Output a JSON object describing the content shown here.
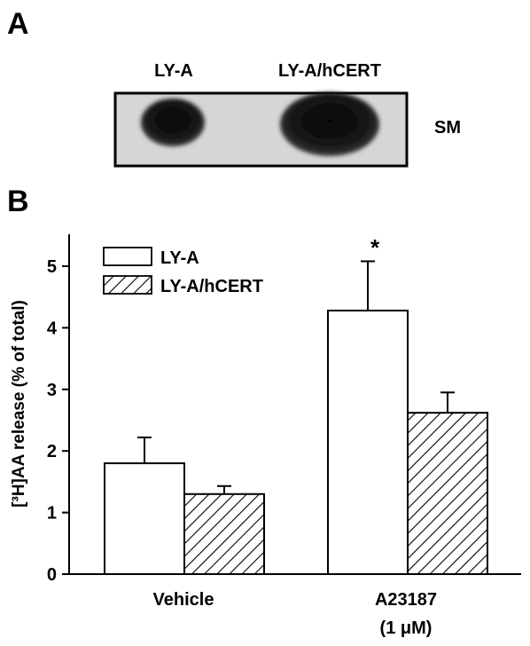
{
  "panel_a": {
    "letter": "A",
    "lane_labels": [
      "LY-A",
      "LY-A/hCERT"
    ],
    "band_label": "SM"
  },
  "panel_b": {
    "letter": "B"
  },
  "chart_data": {
    "type": "bar",
    "categories": [
      "Vehicle",
      "A23187"
    ],
    "category_sublabels": [
      "",
      "(1 μM)"
    ],
    "ylabel": "[³H]AA release (% of total)",
    "xlabel": "",
    "ylim": [
      0,
      5.5
    ],
    "yticks": [
      0,
      1,
      2,
      3,
      4,
      5
    ],
    "legend_position": "top-left",
    "series": [
      {
        "name": "LY-A",
        "fill": "open",
        "values": [
          1.8,
          4.28
        ],
        "errors": [
          0.42,
          0.8
        ]
      },
      {
        "name": "LY-A/hCERT",
        "fill": "hatched",
        "values": [
          1.3,
          2.62
        ],
        "errors": [
          0.13,
          0.33
        ]
      }
    ],
    "annotations": [
      {
        "text": "*",
        "category": "A23187",
        "series": "LY-A"
      }
    ]
  }
}
